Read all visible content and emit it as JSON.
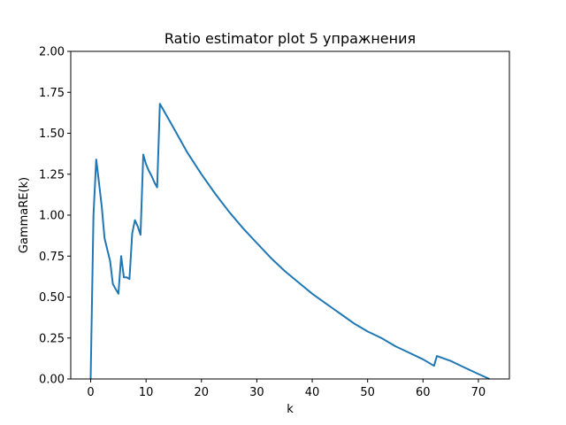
{
  "chart_data": {
    "type": "line",
    "title": "Ratio estimator plot 5 упражнения",
    "xlabel": "k",
    "ylabel": "GammaRE(k)",
    "xlim": [
      -3.6,
      75.6
    ],
    "ylim": [
      0,
      2.0
    ],
    "xticks": [
      0,
      10,
      20,
      30,
      40,
      50,
      60,
      70
    ],
    "xtick_labels": [
      "0",
      "10",
      "20",
      "30",
      "40",
      "50",
      "60",
      "70"
    ],
    "yticks": [
      0,
      0.25,
      0.5,
      0.75,
      1.0,
      1.25,
      1.5,
      1.75,
      2.0
    ],
    "ytick_labels": [
      "0.00",
      "0.25",
      "0.50",
      "0.75",
      "1.00",
      "1.25",
      "1.50",
      "1.75",
      "2.00"
    ],
    "grid": false,
    "color": "#1f77b4",
    "series": [
      {
        "x": [
          0,
          0.5,
          1,
          1.5,
          2,
          2.5,
          3,
          3.5,
          4,
          4.5,
          5,
          5.5,
          6,
          6.5,
          7,
          7.5,
          8,
          8.5,
          9,
          9.5,
          10,
          10.5,
          11,
          11.5,
          12,
          12.5,
          15,
          17.5,
          20,
          22.5,
          25,
          27.5,
          30,
          32.5,
          35,
          37.5,
          40,
          42.5,
          45,
          47.5,
          50,
          52.5,
          55,
          57.5,
          60,
          62,
          62.5,
          65,
          67.5,
          70,
          72
        ],
        "values": [
          0.0,
          1.0,
          1.34,
          1.2,
          1.05,
          0.86,
          0.79,
          0.72,
          0.58,
          0.55,
          0.52,
          0.75,
          0.62,
          0.62,
          0.61,
          0.89,
          0.97,
          0.93,
          0.88,
          1.37,
          1.31,
          1.27,
          1.24,
          1.2,
          1.17,
          1.68,
          1.53,
          1.38,
          1.25,
          1.13,
          1.02,
          0.92,
          0.83,
          0.74,
          0.66,
          0.59,
          0.52,
          0.46,
          0.4,
          0.34,
          0.29,
          0.25,
          0.2,
          0.16,
          0.12,
          0.08,
          0.14,
          0.11,
          0.07,
          0.03,
          0.0
        ]
      }
    ]
  }
}
